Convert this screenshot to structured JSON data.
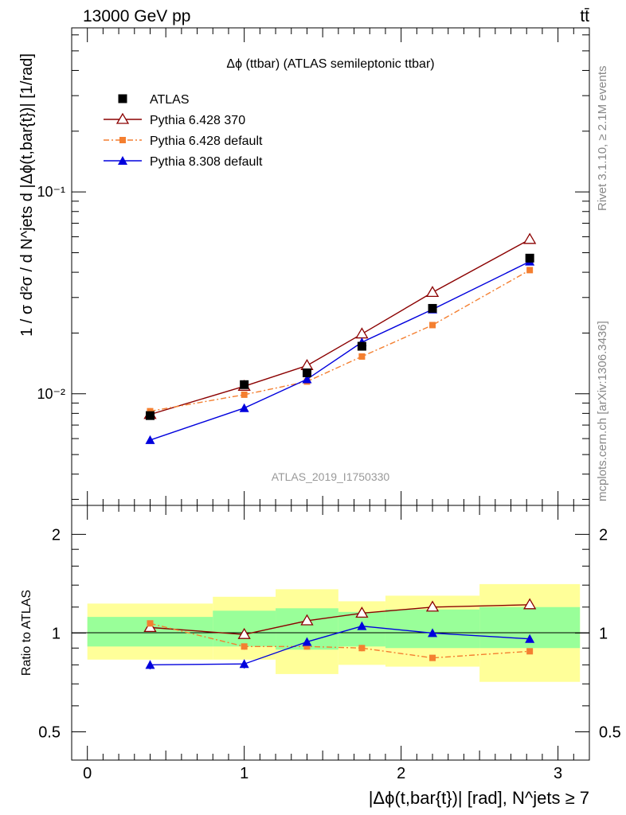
{
  "header": {
    "energy_label": "13000 GeV pp",
    "process_label": "tt̄"
  },
  "side_labels": {
    "rivet": "Rivet 3.1.10, ≥ 2.1M events",
    "mcplots": "mcplots.cern.ch [arXiv:1306.3436]"
  },
  "chart_data": [
    {
      "panel": "main",
      "type": "line",
      "title": "Δϕ (ttbar) (ATLAS semileptonic ttbar)",
      "ylabel": "1 / σ d²σ / d N^jets d |Δϕ(t,bar{t})| [1/rad]",
      "y_scale": "log",
      "ylim": [
        0.0028,
        0.65
      ],
      "xlim": [
        -0.1,
        3.2
      ],
      "y_ticks": [
        {
          "value": 0.01,
          "label": "10⁻²"
        },
        {
          "value": 0.1,
          "label": "10⁻¹"
        }
      ],
      "watermark": "ATLAS_2019_I1750330",
      "legend_position": "top-left",
      "x": [
        0.4,
        1.0,
        1.4,
        1.75,
        2.2,
        2.82
      ],
      "series": [
        {
          "name": "ATLAS",
          "marker": "square",
          "color": "#000000",
          "values": [
            0.0078,
            0.0111,
            0.0127,
            0.0172,
            0.0265,
            0.047
          ]
        },
        {
          "name": "Pythia 6.428 370",
          "marker": "open-triangle",
          "color": "#8b0000",
          "line": "solid",
          "values": [
            0.0079,
            0.0109,
            0.0138,
            0.0198,
            0.0318,
            0.0582
          ]
        },
        {
          "name": "Pythia 6.428 default",
          "marker": "small-square",
          "color": "#f47f30",
          "line": "dashdot",
          "values": [
            0.0082,
            0.0099,
            0.0115,
            0.0153,
            0.0219,
            0.041
          ]
        },
        {
          "name": "Pythia 8.308 default",
          "marker": "triangle",
          "color": "#0000dd",
          "line": "solid",
          "values": [
            0.0059,
            0.0085,
            0.0118,
            0.018,
            0.0262,
            0.0452
          ]
        }
      ]
    },
    {
      "panel": "ratio",
      "type": "line",
      "ylabel": "Ratio to ATLAS",
      "xlabel": "|Δϕ(t,bar{t})| [rad], N^jets ≥ 7",
      "y_scale": "log",
      "ylim": [
        0.41,
        2.45
      ],
      "xlim": [
        -0.1,
        3.2
      ],
      "y_ticks": [
        {
          "value": 0.5,
          "label": "0.5"
        },
        {
          "value": 1,
          "label": "1"
        },
        {
          "value": 2,
          "label": "2"
        }
      ],
      "x_ticks": [
        {
          "value": 0,
          "label": "0"
        },
        {
          "value": 1,
          "label": "1"
        },
        {
          "value": 2,
          "label": "2"
        },
        {
          "value": 3,
          "label": "3"
        }
      ],
      "x": [
        0.4,
        1.0,
        1.4,
        1.75,
        2.2,
        2.82
      ],
      "bins": [
        [
          0.0,
          0.8
        ],
        [
          0.8,
          1.2
        ],
        [
          1.2,
          1.6
        ],
        [
          1.6,
          1.9
        ],
        [
          1.9,
          2.5
        ],
        [
          2.5,
          3.14
        ]
      ],
      "uncertainty_bands": {
        "outer_color": "#ffff99",
        "inner_color": "#99ff99",
        "outer": [
          [
            0.83,
            1.23
          ],
          [
            0.83,
            1.29
          ],
          [
            0.75,
            1.36
          ],
          [
            0.8,
            1.25
          ],
          [
            0.79,
            1.3
          ],
          [
            0.71,
            1.41
          ]
        ],
        "inner": [
          [
            0.91,
            1.12
          ],
          [
            0.91,
            1.17
          ],
          [
            0.89,
            1.19
          ],
          [
            0.91,
            1.16
          ],
          [
            0.9,
            1.18
          ],
          [
            0.9,
            1.2
          ]
        ]
      },
      "series": [
        {
          "name": "Pythia 6.428 370",
          "marker": "open-triangle",
          "color": "#8b0000",
          "line": "solid",
          "values": [
            1.04,
            0.99,
            1.09,
            1.15,
            1.2,
            1.22
          ]
        },
        {
          "name": "Pythia 6.428 default",
          "marker": "small-square",
          "color": "#f47f30",
          "line": "dashdot",
          "values": [
            1.07,
            0.91,
            0.91,
            0.9,
            0.84,
            0.88
          ],
          "errors": [
            0.0,
            0.02,
            0.02,
            0.02,
            0.0,
            0.0
          ]
        },
        {
          "name": "Pythia 8.308 default",
          "marker": "triangle",
          "color": "#0000dd",
          "line": "solid",
          "values": [
            0.8,
            0.805,
            0.94,
            1.05,
            1.0,
            0.96
          ],
          "errors": [
            0.025,
            0.025,
            0.025,
            0.0,
            0.0,
            0.0
          ]
        }
      ]
    }
  ]
}
